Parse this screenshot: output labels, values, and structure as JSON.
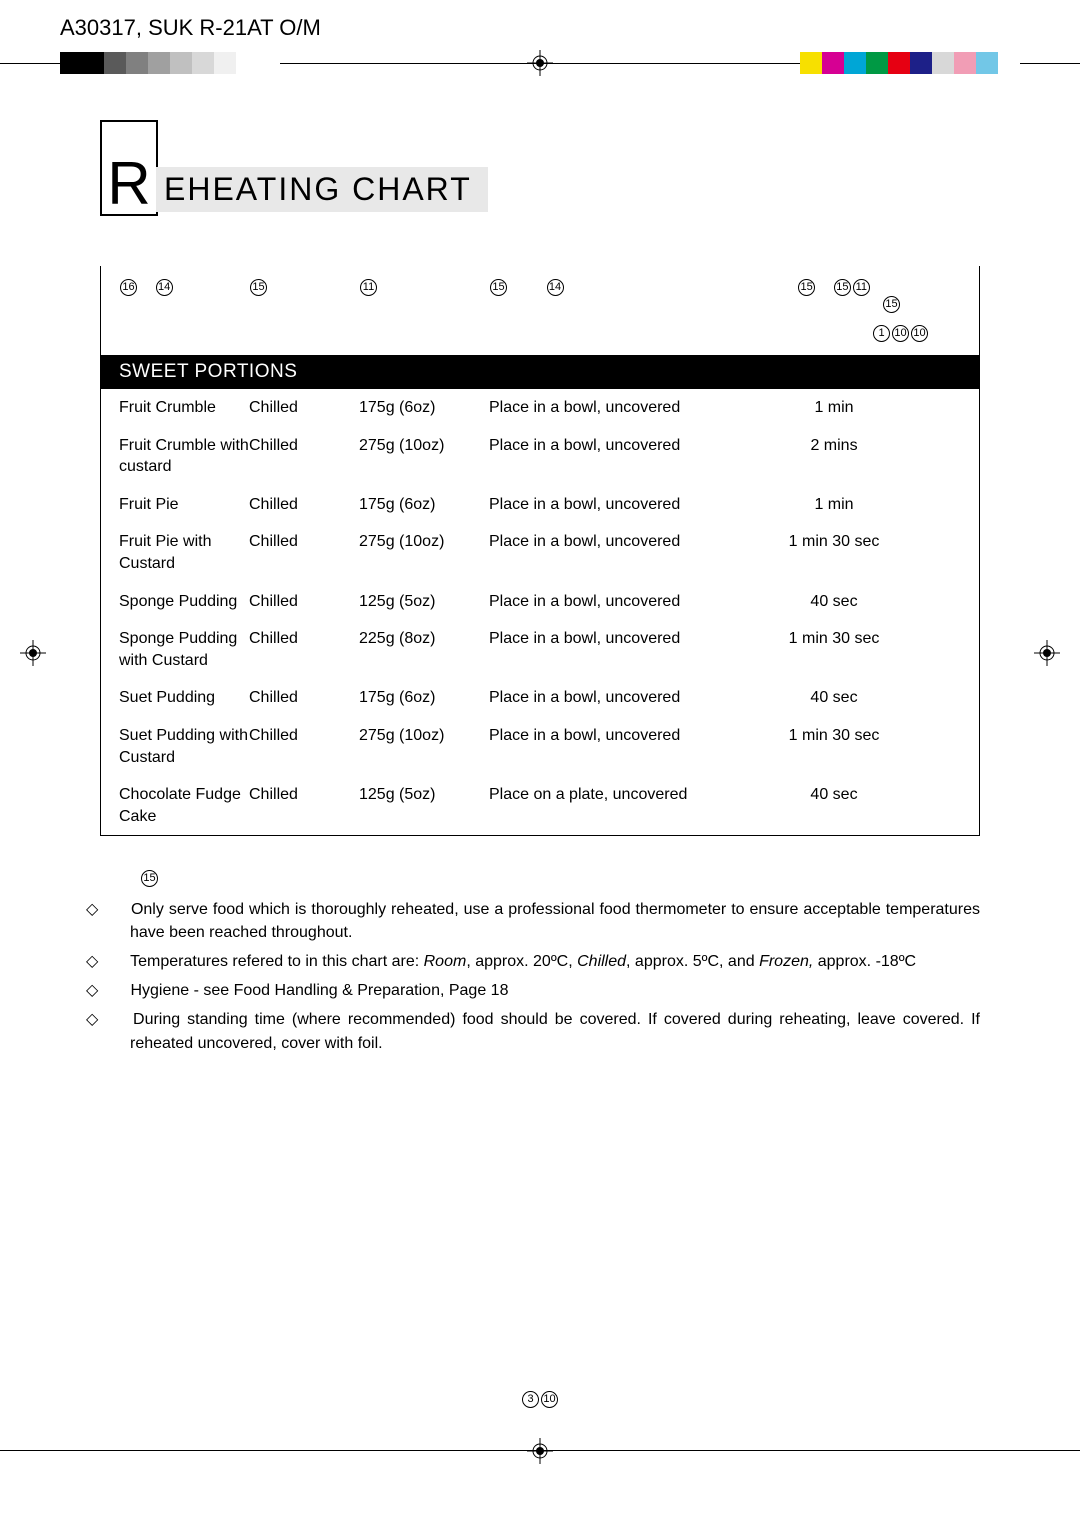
{
  "doc_id": "A30317, SUK R-21AT O/M",
  "colorbar_left": [
    "#000000",
    "#000000",
    "#5a5a5a",
    "#808080",
    "#a0a0a0",
    "#c0c0c0",
    "#d8d8d8",
    "#f0f0f0",
    "#ffffff",
    "#ffffff"
  ],
  "colorbar_right": [
    "#f7e000",
    "#d60093",
    "#00a6d6",
    "#009944",
    "#e60012",
    "#1d2088",
    "#d8d8d8",
    "#f19db5",
    "#72c7e7",
    "#ffffff"
  ],
  "title_initial": "R",
  "title_rest": "EHEATING CHART",
  "header_icons": {
    "col1": [
      "⑯",
      "⑭"
    ],
    "col2": [
      "⑮"
    ],
    "col3": [
      "⑪"
    ],
    "col4": [
      "⑮",
      "⑭"
    ],
    "col5_top": [
      "⑮",
      "⑮⑪"
    ],
    "col5_mid": [
      "⑮"
    ],
    "col5_bot": [
      "①⑩⑩"
    ]
  },
  "section_label": "SWEET PORTIONS",
  "rows": [
    {
      "food": "Fruit Crumble",
      "temp": "Chilled",
      "weight": "175g (6oz)",
      "method": "Place in a bowl, uncovered",
      "time": "1 min"
    },
    {
      "food": "Fruit Crumble with custard",
      "temp": "Chilled",
      "weight": "275g (10oz)",
      "method": "Place in a bowl, uncovered",
      "time": "2 mins"
    },
    {
      "food": "Fruit Pie",
      "temp": "Chilled",
      "weight": "175g (6oz)",
      "method": "Place in a bowl, uncovered",
      "time": "1 min"
    },
    {
      "food": "Fruit Pie with Custard",
      "temp": "Chilled",
      "weight": "275g (10oz)",
      "method": "Place in a bowl, uncovered",
      "time": "1 min 30 sec"
    },
    {
      "food": "Sponge Pudding",
      "temp": "Chilled",
      "weight": "125g (5oz)",
      "method": "Place in a bowl, uncovered",
      "time": "40 sec"
    },
    {
      "food": "Sponge Pudding with Custard",
      "temp": "Chilled",
      "weight": "225g (8oz)",
      "method": "Place in a bowl, uncovered",
      "time": "1 min 30 sec"
    },
    {
      "food": "Suet Pudding",
      "temp": "Chilled",
      "weight": "175g (6oz)",
      "method": "Place in a bowl, uncovered",
      "time": "40 sec"
    },
    {
      "food": "Suet Pudding with Custard",
      "temp": "Chilled",
      "weight": "275g (10oz)",
      "method": "Place in a bowl, uncovered",
      "time": "1 min 30 sec"
    },
    {
      "food": "Chocolate Fudge Cake",
      "temp": "Chilled",
      "weight": "125g (5oz)",
      "method": "Place on a plate, uncovered",
      "time": "40 sec"
    }
  ],
  "note_circled": "⑮",
  "notes": [
    "Only serve food which is thoroughly reheated, use a professional food thermometer to ensure acceptable temperatures have been reached throughout.",
    "Temperatures refered to in this chart are: <i>Room</i>, approx. 20ºC, <i>Chilled</i>, approx.  5ºC, and <i>Frozen,</i> approx. -18ºC",
    "Hygiene - see Food Handling & Preparation, Page 18",
    "During standing time (where recommended) food should be covered.  If covered during reheating, leave covered. If reheated uncovered, cover with foil."
  ],
  "pagenum": "③⑩"
}
